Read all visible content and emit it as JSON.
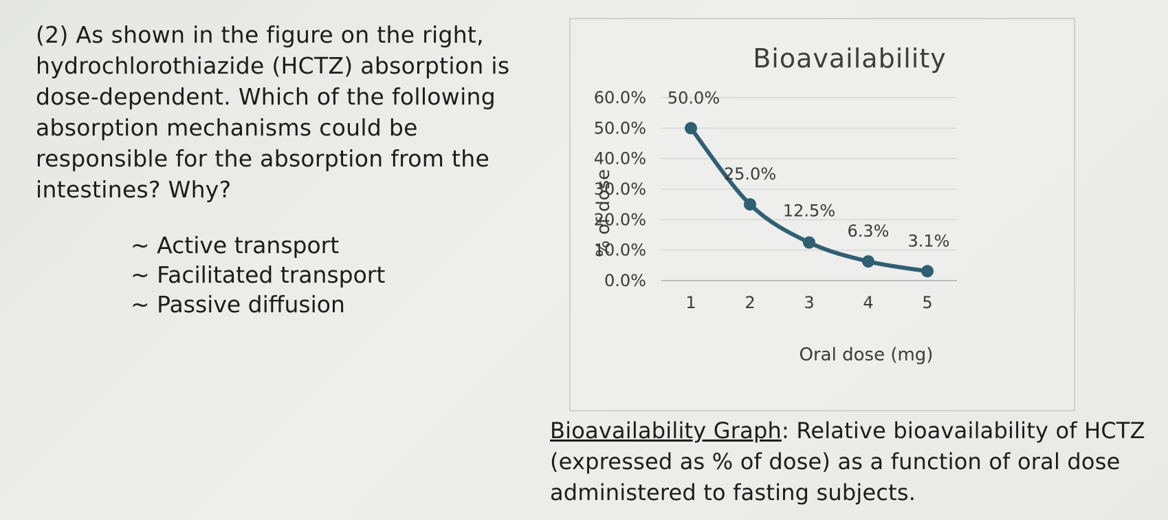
{
  "question": {
    "lines": [
      "(2) As shown in the figure on the right,",
      "hydrochlorothiazide (HCTZ) absorption is",
      "dose-dependent.  Which of the following",
      "absorption mechanisms could be",
      "responsible for the absorption from the",
      "intestines? Why?"
    ],
    "options": [
      "~ Active transport",
      "~ Facilitated transport",
      "~ Passive diffusion"
    ]
  },
  "chart_data": {
    "type": "line",
    "title": "Bioavailability",
    "xlabel": "Oral dose (mg)",
    "ylabel": "% of dose",
    "categories": [
      "1",
      "2",
      "3",
      "4",
      "5"
    ],
    "series": [
      {
        "values": [
          50.0,
          25.0,
          12.5,
          6.3,
          3.1
        ]
      }
    ],
    "data_labels": [
      "50.0%",
      "25.0%",
      "12.5%",
      "6.3%",
      "3.1%"
    ],
    "yticks": [
      "0.0%",
      "10.0%",
      "20.0%",
      "30.0%",
      "40.0%",
      "50.0%",
      "60.0%"
    ],
    "ylim": [
      0,
      60
    ],
    "grid": true,
    "line_color": "#2f5f73"
  },
  "caption": {
    "underlined": "Bioavailability Graph",
    "rest": ": Relative bioavailability of HCTZ (expressed as % of dose) as a function of oral dose administered to fasting subjects."
  }
}
